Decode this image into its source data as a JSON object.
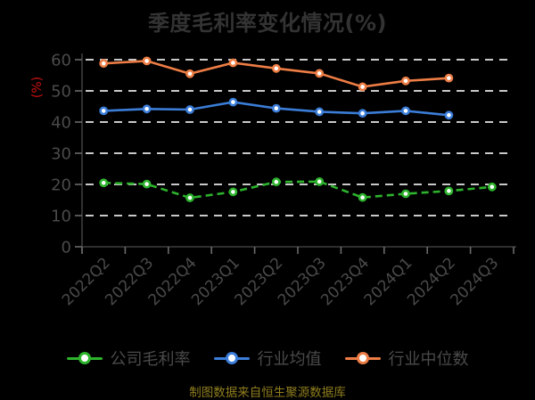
{
  "title": "季度毛利率变化情况(%)",
  "caption": "制图数据来自恒生聚源数据库",
  "colors": {
    "background": "#000000",
    "title": "#333333",
    "axis_line": "#3d3d3d",
    "tick_mark": "#6a6a6a",
    "tick_label": "#4a4a4a",
    "gridline": "#c9c9c9",
    "ylabel": "#cc1111",
    "legend_label": "#4a4a4a",
    "caption": "#8f7d1e",
    "marker_fill": "#ffffff"
  },
  "chart_data": {
    "type": "line",
    "title": "季度毛利率变化情况(%)",
    "ylabel": "(%)",
    "xlabel": "",
    "categories": [
      "2022Q2",
      "2022Q3",
      "2022Q4",
      "2023Q1",
      "2023Q2",
      "2023Q3",
      "2023Q4",
      "2024Q1",
      "2024Q2",
      "2024Q3"
    ],
    "series": [
      {
        "name": "公司毛利率",
        "color": "#2db32d",
        "line_style": "dashed",
        "values": [
          20.5,
          20.1,
          15.7,
          17.6,
          20.8,
          20.9,
          15.8,
          17.0,
          17.9,
          19.2
        ]
      },
      {
        "name": "行业均值",
        "color": "#3b7dd8",
        "line_style": "solid",
        "values": [
          43.6,
          44.2,
          44.0,
          46.4,
          44.4,
          43.3,
          42.8,
          43.6,
          42.2,
          null
        ]
      },
      {
        "name": "行业中位数",
        "color": "#ed7d45",
        "line_style": "solid",
        "values": [
          58.8,
          59.6,
          55.5,
          59.0,
          57.2,
          55.6,
          51.3,
          53.2,
          54.1,
          null
        ]
      }
    ],
    "ylim": [
      0,
      60
    ],
    "yticks": [
      0,
      10,
      20,
      30,
      40,
      50,
      60
    ],
    "grid": "horizontal-dashed",
    "legend_position": "bottom",
    "x_tick_label_rotation": -45
  }
}
